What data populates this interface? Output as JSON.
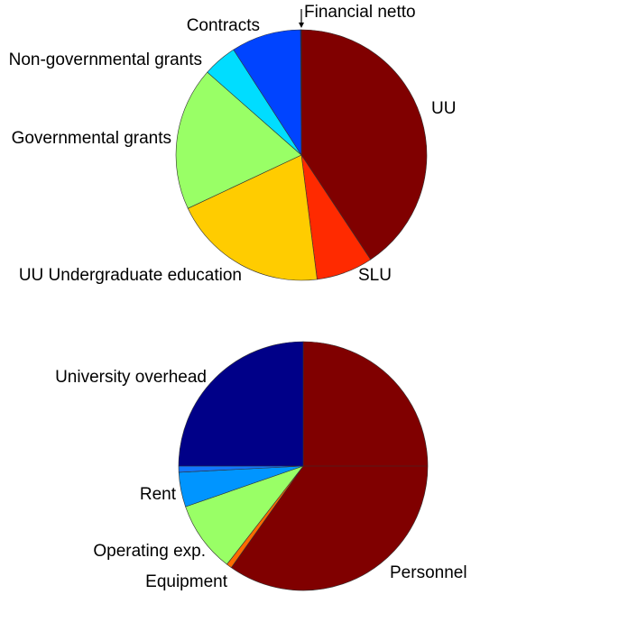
{
  "chart_data": [
    {
      "type": "pie",
      "title": "",
      "slices": [
        {
          "label": "UU",
          "value": 40.7,
          "color": "#800000"
        },
        {
          "label": "SLU",
          "value": 7.3,
          "color": "#ff2a00"
        },
        {
          "label": "UU Undergraduate education",
          "value": 20.0,
          "color": "#ffcc00"
        },
        {
          "label": "Governmental grants",
          "value": 18.5,
          "color": "#99ff66"
        },
        {
          "label": "Non-governmental grants",
          "value": 4.4,
          "color": "#00ddff"
        },
        {
          "label": "Contracts",
          "value": 9.0,
          "color": "#0044ff"
        },
        {
          "label": "Financial netto",
          "value": 0.1,
          "color": "#000090"
        }
      ]
    },
    {
      "type": "pie",
      "title": "",
      "slices": [
        {
          "label": "Personnel",
          "value": 59.8,
          "color": "#800000",
          "split": true
        },
        {
          "label": "Equipment",
          "value": 0.7,
          "color": "#ff6a00"
        },
        {
          "label": "Operating exp.",
          "value": 9.2,
          "color": "#99ff66"
        },
        {
          "label": "Rent",
          "value": 4.5,
          "color": "#0095ff"
        },
        {
          "label": "",
          "value": 0.8,
          "color": "#1177ff"
        },
        {
          "label": "University overhead",
          "value": 25.0,
          "color": "#000088"
        }
      ]
    }
  ]
}
